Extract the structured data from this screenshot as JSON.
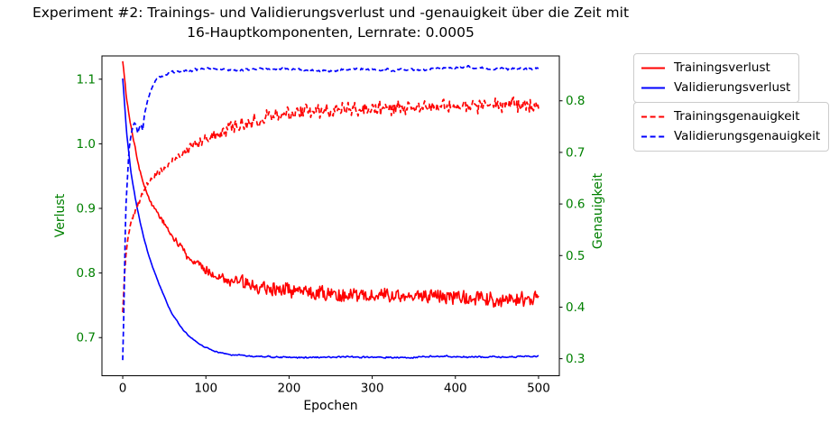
{
  "chart_data": {
    "type": "line",
    "title": "Experiment #2: Trainings- und Validierungsverlust und -genauigkeit über die Zeit mit\n16-Hauptkomponenten, Lernrate: 0.0005",
    "xlabel": "Epochen",
    "ylabel_left": "Verlust",
    "ylabel_right": "Genauigkeit",
    "x_ticks": [
      "0",
      "100",
      "200",
      "300",
      "400",
      "500"
    ],
    "y_ticks_left": [
      "0.7",
      "0.8",
      "0.9",
      "1.0",
      "1.1"
    ],
    "y_ticks_right": [
      "0.3",
      "0.4",
      "0.5",
      "0.6",
      "0.7",
      "0.8"
    ],
    "xlim": [
      -25,
      525
    ],
    "ylim_left": [
      0.641,
      1.136
    ],
    "ylim_right": [
      0.267,
      0.887
    ],
    "grid": false,
    "background": "#ffffff",
    "spine_color": "#000000",
    "axis_label_color": "#008000",
    "x_tick_label_color": "#000000",
    "legend_position": "outside-right-two-boxes",
    "series": [
      {
        "name": "Trainingsverlust",
        "axis": "left",
        "color": "#ff0000",
        "style": "solid",
        "width": 1.6,
        "noise": {
          "amp_start": 0.002,
          "amp_end": 0.0115,
          "ramp": [
            25,
            150
          ],
          "smooth": 0.15,
          "seed": 101
        },
        "keypoints": [
          [
            0,
            1.128
          ],
          [
            5,
            1.066
          ],
          [
            10,
            1.027
          ],
          [
            15,
            0.993
          ],
          [
            20,
            0.962
          ],
          [
            25,
            0.938
          ],
          [
            30,
            0.92
          ],
          [
            35,
            0.907
          ],
          [
            40,
            0.896
          ],
          [
            45,
            0.886
          ],
          [
            50,
            0.877
          ],
          [
            55,
            0.866
          ],
          [
            60,
            0.856
          ],
          [
            70,
            0.839
          ],
          [
            80,
            0.824
          ],
          [
            90,
            0.814
          ],
          [
            100,
            0.803
          ],
          [
            110,
            0.797
          ],
          [
            120,
            0.792
          ],
          [
            135,
            0.787
          ],
          [
            150,
            0.783
          ],
          [
            175,
            0.778
          ],
          [
            200,
            0.775
          ],
          [
            225,
            0.772
          ],
          [
            250,
            0.769
          ],
          [
            275,
            0.766
          ],
          [
            300,
            0.764
          ],
          [
            350,
            0.764
          ],
          [
            400,
            0.762
          ],
          [
            450,
            0.759
          ],
          [
            500,
            0.757
          ]
        ]
      },
      {
        "name": "Validierungsverlust",
        "axis": "left",
        "color": "#0000ff",
        "style": "solid",
        "width": 1.6,
        "noise": {
          "amp_start": 0.0012,
          "amp_end": 0.002,
          "ramp": [
            50,
            200
          ],
          "smooth": 0.55,
          "seed": 202
        },
        "keypoints": [
          [
            0,
            1.101
          ],
          [
            5,
            1.013
          ],
          [
            10,
            0.955
          ],
          [
            15,
            0.916
          ],
          [
            20,
            0.884
          ],
          [
            25,
            0.856
          ],
          [
            30,
            0.832
          ],
          [
            35,
            0.812
          ],
          [
            40,
            0.795
          ],
          [
            45,
            0.779
          ],
          [
            50,
            0.764
          ],
          [
            55,
            0.748
          ],
          [
            60,
            0.736
          ],
          [
            65,
            0.726
          ],
          [
            70,
            0.716
          ],
          [
            75,
            0.708
          ],
          [
            80,
            0.702
          ],
          [
            85,
            0.697
          ],
          [
            90,
            0.692
          ],
          [
            95,
            0.688
          ],
          [
            100,
            0.684
          ],
          [
            110,
            0.679
          ],
          [
            120,
            0.676
          ],
          [
            130,
            0.674
          ],
          [
            140,
            0.673
          ],
          [
            160,
            0.671
          ],
          [
            180,
            0.67
          ],
          [
            220,
            0.669
          ],
          [
            260,
            0.67
          ],
          [
            300,
            0.67
          ],
          [
            340,
            0.669
          ],
          [
            380,
            0.671
          ],
          [
            420,
            0.67
          ],
          [
            460,
            0.67
          ],
          [
            500,
            0.671
          ]
        ]
      },
      {
        "name": "Trainingsgenauigkeit",
        "axis": "right",
        "color": "#ff0000",
        "style": "dashed",
        "width": 1.7,
        "noise": {
          "amp_start": 0.004,
          "amp_end": 0.0125,
          "ramp": [
            15,
            140
          ],
          "smooth": 0.1,
          "seed": 303
        },
        "keypoints": [
          [
            0,
            0.386
          ],
          [
            2,
            0.46
          ],
          [
            4,
            0.505
          ],
          [
            6,
            0.53
          ],
          [
            8,
            0.55
          ],
          [
            10,
            0.565
          ],
          [
            13,
            0.578
          ],
          [
            16,
            0.59
          ],
          [
            20,
            0.606
          ],
          [
            25,
            0.622
          ],
          [
            30,
            0.638
          ],
          [
            35,
            0.648
          ],
          [
            40,
            0.657
          ],
          [
            45,
            0.664
          ],
          [
            50,
            0.669
          ],
          [
            57,
            0.679
          ],
          [
            63,
            0.687
          ],
          [
            70,
            0.695
          ],
          [
            78,
            0.703
          ],
          [
            85,
            0.71
          ],
          [
            95,
            0.719
          ],
          [
            105,
            0.729
          ],
          [
            115,
            0.738
          ],
          [
            130,
            0.748
          ],
          [
            145,
            0.756
          ],
          [
            160,
            0.763
          ],
          [
            180,
            0.769
          ],
          [
            200,
            0.774
          ],
          [
            225,
            0.778
          ],
          [
            250,
            0.781
          ],
          [
            275,
            0.783
          ],
          [
            300,
            0.785
          ],
          [
            330,
            0.786
          ],
          [
            360,
            0.788
          ],
          [
            390,
            0.789
          ],
          [
            420,
            0.79
          ],
          [
            450,
            0.791
          ],
          [
            500,
            0.792
          ]
        ]
      },
      {
        "name": "Validierungsgenauigkeit",
        "axis": "right",
        "color": "#0000ff",
        "style": "dashed",
        "width": 1.7,
        "noise": {
          "amp_start": 0.001,
          "amp_end": 0.0033,
          "ramp": [
            10,
            60
          ],
          "smooth": 0.45,
          "seed": 404
        },
        "keypoints": [
          [
            0,
            0.297
          ],
          [
            1,
            0.37
          ],
          [
            2,
            0.45
          ],
          [
            3,
            0.54
          ],
          [
            4,
            0.6
          ],
          [
            5,
            0.632
          ],
          [
            6,
            0.66
          ],
          [
            7,
            0.69
          ],
          [
            8,
            0.71
          ],
          [
            10,
            0.734
          ],
          [
            12,
            0.749
          ],
          [
            14,
            0.757
          ],
          [
            16,
            0.754
          ],
          [
            18,
            0.737
          ],
          [
            20,
            0.748
          ],
          [
            22,
            0.754
          ],
          [
            24,
            0.742
          ],
          [
            26,
            0.772
          ],
          [
            28,
            0.787
          ],
          [
            30,
            0.8
          ],
          [
            33,
            0.817
          ],
          [
            36,
            0.829
          ],
          [
            40,
            0.841
          ],
          [
            45,
            0.847
          ],
          [
            50,
            0.851
          ],
          [
            55,
            0.853
          ],
          [
            60,
            0.856
          ],
          [
            70,
            0.857
          ],
          [
            80,
            0.858
          ],
          [
            90,
            0.86
          ],
          [
            100,
            0.862
          ],
          [
            120,
            0.861
          ],
          [
            140,
            0.859
          ],
          [
            160,
            0.861
          ],
          [
            180,
            0.862
          ],
          [
            200,
            0.861
          ],
          [
            225,
            0.859
          ],
          [
            250,
            0.858
          ],
          [
            275,
            0.861
          ],
          [
            300,
            0.861
          ],
          [
            325,
            0.86
          ],
          [
            350,
            0.86
          ],
          [
            375,
            0.862
          ],
          [
            400,
            0.864
          ],
          [
            415,
            0.866
          ],
          [
            430,
            0.863
          ],
          [
            450,
            0.862
          ],
          [
            475,
            0.861
          ],
          [
            500,
            0.862
          ]
        ]
      }
    ]
  }
}
